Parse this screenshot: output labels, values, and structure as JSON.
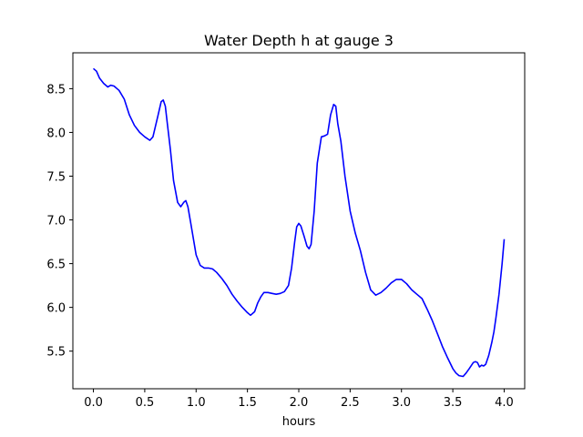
{
  "chart_data": {
    "type": "line",
    "title": "Water Depth h at gauge 3",
    "xlabel": "hours",
    "ylabel": "",
    "xlim": [
      -0.2,
      4.2
    ],
    "ylim": [
      5.07,
      8.91
    ],
    "xticks": [
      0.0,
      0.5,
      1.0,
      1.5,
      2.0,
      2.5,
      3.0,
      3.5,
      4.0
    ],
    "xtick_labels": [
      "0.0",
      "0.5",
      "1.0",
      "1.5",
      "2.0",
      "2.5",
      "3.0",
      "3.5",
      "4.0"
    ],
    "yticks": [
      5.5,
      6.0,
      6.5,
      7.0,
      7.5,
      8.0,
      8.5
    ],
    "ytick_labels": [
      "5.5",
      "6.0",
      "6.5",
      "7.0",
      "7.5",
      "8.0",
      "8.5"
    ],
    "grid": false,
    "series": [
      {
        "color": "#0000ff",
        "x": [
          0.0,
          0.03,
          0.06,
          0.1,
          0.14,
          0.17,
          0.2,
          0.25,
          0.3,
          0.35,
          0.4,
          0.45,
          0.5,
          0.55,
          0.58,
          0.6,
          0.63,
          0.66,
          0.68,
          0.7,
          0.72,
          0.75,
          0.78,
          0.82,
          0.85,
          0.88,
          0.9,
          0.92,
          0.95,
          1.0,
          1.04,
          1.08,
          1.12,
          1.16,
          1.2,
          1.25,
          1.3,
          1.35,
          1.4,
          1.45,
          1.5,
          1.53,
          1.57,
          1.6,
          1.63,
          1.66,
          1.7,
          1.74,
          1.78,
          1.82,
          1.86,
          1.9,
          1.93,
          1.96,
          1.98,
          2.0,
          2.02,
          2.05,
          2.08,
          2.1,
          2.12,
          2.15,
          2.18,
          2.22,
          2.25,
          2.28,
          2.31,
          2.34,
          2.36,
          2.38,
          2.41,
          2.45,
          2.5,
          2.55,
          2.6,
          2.65,
          2.7,
          2.75,
          2.8,
          2.85,
          2.9,
          2.95,
          3.0,
          3.05,
          3.1,
          3.15,
          3.2,
          3.25,
          3.3,
          3.35,
          3.4,
          3.45,
          3.5,
          3.53,
          3.56,
          3.6,
          3.63,
          3.66,
          3.7,
          3.72,
          3.74,
          3.76,
          3.78,
          3.8,
          3.82,
          3.85,
          3.88,
          3.9,
          3.92,
          3.95,
          3.98,
          4.0
        ],
        "y": [
          8.73,
          8.7,
          8.62,
          8.56,
          8.52,
          8.54,
          8.53,
          8.48,
          8.38,
          8.2,
          8.08,
          8.0,
          7.95,
          7.91,
          7.95,
          8.05,
          8.2,
          8.35,
          8.37,
          8.3,
          8.1,
          7.8,
          7.45,
          7.2,
          7.15,
          7.2,
          7.22,
          7.15,
          6.95,
          6.6,
          6.48,
          6.45,
          6.45,
          6.44,
          6.4,
          6.33,
          6.25,
          6.15,
          6.07,
          6.0,
          5.94,
          5.91,
          5.95,
          6.05,
          6.12,
          6.17,
          6.17,
          6.16,
          6.15,
          6.16,
          6.18,
          6.25,
          6.45,
          6.75,
          6.92,
          6.96,
          6.93,
          6.82,
          6.7,
          6.67,
          6.72,
          7.1,
          7.65,
          7.95,
          7.96,
          7.98,
          8.2,
          8.32,
          8.3,
          8.1,
          7.9,
          7.5,
          7.1,
          6.85,
          6.65,
          6.4,
          6.2,
          6.14,
          6.17,
          6.22,
          6.28,
          6.32,
          6.32,
          6.27,
          6.2,
          6.15,
          6.1,
          5.98,
          5.85,
          5.7,
          5.55,
          5.42,
          5.3,
          5.25,
          5.22,
          5.21,
          5.25,
          5.3,
          5.37,
          5.38,
          5.37,
          5.32,
          5.34,
          5.33,
          5.35,
          5.45,
          5.6,
          5.72,
          5.88,
          6.15,
          6.5,
          6.78
        ]
      }
    ]
  }
}
